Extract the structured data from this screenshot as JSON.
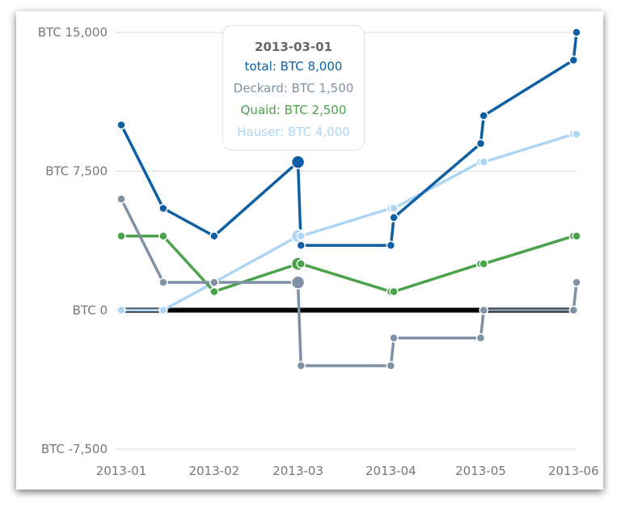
{
  "chart_data": {
    "type": "line",
    "title": "",
    "xlabel": "",
    "ylabel": "",
    "x": [
      "2013-01-01",
      "2013-01-15",
      "2013-02-01",
      "2013-03-01",
      "2013-03-02",
      "2013-04-01",
      "2013-04-02",
      "2013-05-01",
      "2013-05-02",
      "2013-06-01",
      "2013-06-02"
    ],
    "x_ticks": [
      "2013-01",
      "2013-02",
      "2013-03",
      "2013-04",
      "2013-05",
      "2013-06"
    ],
    "y_ticks": [
      "BTC -7,500",
      "BTC 0",
      "BTC 7,500",
      "BTC 15,000"
    ],
    "y_tick_values": [
      -7500,
      0,
      7500,
      15000
    ],
    "ylim": [
      -7500,
      15000
    ],
    "grid": true,
    "series": [
      {
        "name": "total",
        "color": "#0f5fa3",
        "values": [
          10000,
          5500,
          4000,
          8000,
          3500,
          3500,
          5000,
          9000,
          10500,
          13500,
          15000
        ]
      },
      {
        "name": "Deckard",
        "color": "#7f92a5",
        "values": [
          6000,
          1500,
          1500,
          1500,
          -3000,
          -3000,
          -1500,
          -1500,
          0,
          0,
          1500
        ]
      },
      {
        "name": "Quaid",
        "color": "#4aa34a",
        "values": [
          4000,
          4000,
          1000,
          2500,
          2500,
          1000,
          1000,
          2500,
          2500,
          4000,
          4000
        ]
      },
      {
        "name": "Hauser",
        "color": "#aed5f2",
        "values": [
          0,
          0,
          1500,
          4000,
          4000,
          5500,
          5500,
          8000,
          8000,
          9500,
          9500
        ]
      }
    ],
    "baseline": {
      "value": 0,
      "color": "#000000"
    },
    "highlight_index": 3,
    "tooltip": {
      "title": "2013-03-01",
      "rows": [
        {
          "text": "total: BTC 8,000",
          "color": "#0f5fa3"
        },
        {
          "text": "Deckard: BTC 1,500",
          "color": "#7f92a5"
        },
        {
          "text": "Quaid: BTC 2,500",
          "color": "#4aa34a"
        },
        {
          "text": "Hauser: BTC 4,000",
          "color": "#aed5f2"
        }
      ]
    }
  }
}
